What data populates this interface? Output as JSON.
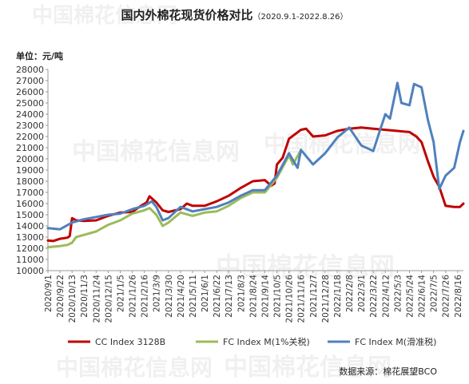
{
  "title": "国内外棉花现货价格对比",
  "subtitle": "（2020.9.1-2022.8.26）",
  "unit_label": "单位：元/吨",
  "source": "数据来源：棉花展望BCO",
  "watermark": "中国棉花信息网",
  "colors": {
    "cc": "#c00000",
    "fc1": "#9bbb59",
    "fcs": "#4f81bd",
    "axis": "#999999"
  },
  "chart_data": {
    "type": "line",
    "ylim": [
      10000,
      28000
    ],
    "y_ticks": [
      10000,
      11000,
      12000,
      13000,
      14000,
      15000,
      16000,
      17000,
      18000,
      19000,
      20000,
      21000,
      22000,
      23000,
      24000,
      25000,
      26000,
      27000,
      28000
    ],
    "x_tick_labels": [
      "2020/9/1",
      "2020/9/22",
      "2020/10/13",
      "2020/11/3",
      "2020/11/24",
      "2020/12/15",
      "2021/1/5",
      "2021/1/26",
      "2021/2/16",
      "2021/3/9",
      "2021/3/30",
      "2021/4/20",
      "2021/5/11",
      "2021/6/1",
      "2021/6/22",
      "2021/7/13",
      "2021/8/3",
      "2021/8/24",
      "2021/9/14",
      "2021/10/5",
      "2021/10/26",
      "2021/11/16",
      "2021/12/7",
      "2021/12/28",
      "2022/1/18",
      "2022/2/8",
      "2022/3/1",
      "2022/3/22",
      "2022/4/12",
      "2022/5/3",
      "2022/5/24",
      "2022/6/14",
      "2022/7/5",
      "2022/7/26",
      "2022/8/16"
    ],
    "grid": false,
    "legend_position": "bottom",
    "series": [
      {
        "name": "CC Index 3128B",
        "color": "#c00000",
        "points": [
          [
            "2020/9/1",
            12700
          ],
          [
            "2020/9/10",
            12650
          ],
          [
            "2020/9/22",
            12850
          ],
          [
            "2020/10/5",
            12950
          ],
          [
            "2020/10/9",
            13100
          ],
          [
            "2020/10/13",
            14700
          ],
          [
            "2020/10/20",
            14500
          ],
          [
            "2020/11/3",
            14450
          ],
          [
            "2020/11/24",
            14500
          ],
          [
            "2020/12/15",
            14900
          ],
          [
            "2021/1/5",
            15200
          ],
          [
            "2021/1/26",
            15250
          ],
          [
            "2021/2/10",
            15800
          ],
          [
            "2021/2/20",
            16100
          ],
          [
            "2021/2/25",
            16650
          ],
          [
            "2021/3/9",
            16100
          ],
          [
            "2021/3/20",
            15400
          ],
          [
            "2021/3/30",
            15250
          ],
          [
            "2021/4/20",
            15500
          ],
          [
            "2021/5/1",
            16000
          ],
          [
            "2021/5/11",
            15800
          ],
          [
            "2021/6/1",
            15800
          ],
          [
            "2021/6/22",
            16200
          ],
          [
            "2021/7/13",
            16700
          ],
          [
            "2021/8/3",
            17400
          ],
          [
            "2021/8/24",
            18000
          ],
          [
            "2021/9/14",
            18100
          ],
          [
            "2021/9/25",
            17600
          ],
          [
            "2021/10/1",
            17800
          ],
          [
            "2021/10/5",
            19500
          ],
          [
            "2021/10/15",
            20100
          ],
          [
            "2021/10/26",
            21800
          ],
          [
            "2021/11/16",
            22600
          ],
          [
            "2021/11/25",
            22700
          ],
          [
            "2021/12/7",
            22000
          ],
          [
            "2021/12/28",
            22100
          ],
          [
            "2022/1/18",
            22500
          ],
          [
            "2022/2/8",
            22700
          ],
          [
            "2022/3/1",
            22800
          ],
          [
            "2022/3/22",
            22700
          ],
          [
            "2022/4/12",
            22600
          ],
          [
            "2022/5/3",
            22500
          ],
          [
            "2022/5/24",
            22400
          ],
          [
            "2022/6/5",
            22000
          ],
          [
            "2022/6/14",
            21500
          ],
          [
            "2022/6/25",
            19800
          ],
          [
            "2022/7/5",
            18400
          ],
          [
            "2022/7/15",
            17500
          ],
          [
            "2022/7/26",
            15800
          ],
          [
            "2022/8/10",
            15700
          ],
          [
            "2022/8/20",
            15700
          ],
          [
            "2022/8/26",
            16000
          ]
        ]
      },
      {
        "name": "FC Index M(1%关税)",
        "color": "#9bbb59",
        "points": [
          [
            "2020/9/1",
            12100
          ],
          [
            "2020/9/22",
            12200
          ],
          [
            "2020/10/5",
            12300
          ],
          [
            "2020/10/13",
            12500
          ],
          [
            "2020/10/20",
            13000
          ],
          [
            "2020/11/3",
            13200
          ],
          [
            "2020/11/24",
            13500
          ],
          [
            "2020/12/15",
            14100
          ],
          [
            "2021/1/5",
            14500
          ],
          [
            "2021/1/26",
            15100
          ],
          [
            "2021/2/16",
            15400
          ],
          [
            "2021/2/25",
            15600
          ],
          [
            "2021/3/9",
            15000
          ],
          [
            "2021/3/20",
            14000
          ],
          [
            "2021/3/30",
            14300
          ],
          [
            "2021/4/20",
            15200
          ],
          [
            "2021/5/11",
            14900
          ],
          [
            "2021/6/1",
            15200
          ],
          [
            "2021/6/22",
            15300
          ],
          [
            "2021/7/13",
            15800
          ],
          [
            "2021/8/3",
            16500
          ],
          [
            "2021/8/24",
            17000
          ],
          [
            "2021/9/14",
            17000
          ],
          [
            "2021/10/5",
            18300
          ],
          [
            "2021/10/26",
            20300
          ],
          [
            "2021/11/2",
            19500
          ],
          [
            "2021/11/16",
            20800
          ]
        ]
      },
      {
        "name": "FC Index M(滑准税)",
        "color": "#4f81bd",
        "points": [
          [
            "2020/9/1",
            13800
          ],
          [
            "2020/9/22",
            13700
          ],
          [
            "2020/10/13",
            14300
          ],
          [
            "2020/11/3",
            14600
          ],
          [
            "2020/11/24",
            14800
          ],
          [
            "2020/12/15",
            15000
          ],
          [
            "2021/1/5",
            15100
          ],
          [
            "2021/1/26",
            15500
          ],
          [
            "2021/2/16",
            15800
          ],
          [
            "2021/3/1",
            16200
          ],
          [
            "2021/3/9",
            15700
          ],
          [
            "2021/3/20",
            14500
          ],
          [
            "2021/3/30",
            14700
          ],
          [
            "2021/4/20",
            15700
          ],
          [
            "2021/5/11",
            15300
          ],
          [
            "2021/6/1",
            15500
          ],
          [
            "2021/6/22",
            15700
          ],
          [
            "2021/7/13",
            16100
          ],
          [
            "2021/8/3",
            16700
          ],
          [
            "2021/8/24",
            17200
          ],
          [
            "2021/9/14",
            17200
          ],
          [
            "2021/10/5",
            18500
          ],
          [
            "2021/10/26",
            20500
          ],
          [
            "2021/11/10",
            19200
          ],
          [
            "2021/11/16",
            20800
          ],
          [
            "2021/12/7",
            19500
          ],
          [
            "2021/12/28",
            20500
          ],
          [
            "2022/1/18",
            21900
          ],
          [
            "2022/2/8",
            22800
          ],
          [
            "2022/3/1",
            21200
          ],
          [
            "2022/3/22",
            20700
          ],
          [
            "2022/4/1",
            22300
          ],
          [
            "2022/4/12",
            24000
          ],
          [
            "2022/4/20",
            23600
          ],
          [
            "2022/5/3",
            26800
          ],
          [
            "2022/5/10",
            25000
          ],
          [
            "2022/5/24",
            24800
          ],
          [
            "2022/6/1",
            26700
          ],
          [
            "2022/6/14",
            26400
          ],
          [
            "2022/6/25",
            23500
          ],
          [
            "2022/7/1",
            22300
          ],
          [
            "2022/7/5",
            21500
          ],
          [
            "2022/7/15",
            17300
          ],
          [
            "2022/7/26",
            18500
          ],
          [
            "2022/8/10",
            19200
          ],
          [
            "2022/8/20",
            21500
          ],
          [
            "2022/8/26",
            22500
          ]
        ]
      }
    ]
  }
}
